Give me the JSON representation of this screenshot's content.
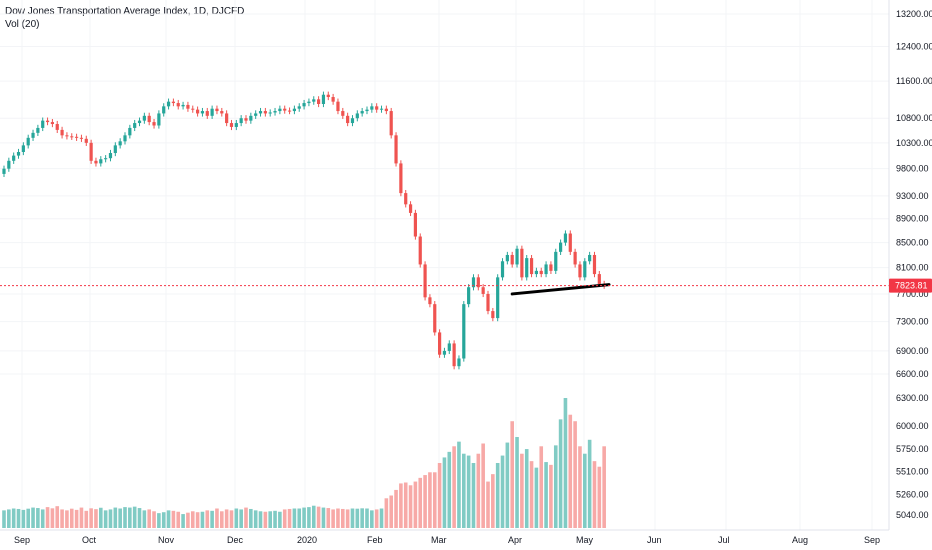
{
  "legend": {
    "title": "Dow Jones Transportation Average Index, 1D, DJCFD",
    "vol_label": "Vol (20)"
  },
  "colors": {
    "up": "#26a69a",
    "down": "#ef5350",
    "vol_up": "#80cbc4",
    "vol_down": "#f7a9a7",
    "price_line": "#f23645",
    "trendline": "#000000"
  },
  "chart_data": {
    "type": "candlestick",
    "title": "Dow Jones Transportation Average Index, 1D, DJCFD",
    "price_axis_ticks": [
      13200,
      12400,
      11600,
      10800,
      10300,
      9800,
      9300,
      8900,
      8500,
      8100,
      7700,
      7300,
      6900,
      6600
    ],
    "volume_axis_ticks": [
      6300,
      6000,
      5750,
      5510,
      5260,
      5040
    ],
    "x_tick_labels": [
      "Sep",
      "Oct",
      "Nov",
      "Dec",
      "2020",
      "Feb",
      "Mar",
      "Apr",
      "May",
      "Jun",
      "Jul",
      "Aug",
      "Sep"
    ],
    "last_price": "7823.81",
    "closes": [
      9800,
      9950,
      10050,
      10120,
      10250,
      10400,
      10500,
      10600,
      10750,
      10720,
      10680,
      10560,
      10450,
      10430,
      10420,
      10400,
      10380,
      10300,
      9950,
      9900,
      9980,
      10000,
      10100,
      10250,
      10330,
      10450,
      10600,
      10700,
      10750,
      10850,
      10720,
      10650,
      10900,
      11050,
      11150,
      11120,
      11050,
      11080,
      11000,
      10980,
      10900,
      10950,
      10850,
      11000,
      10950,
      10900,
      10700,
      10620,
      10700,
      10800,
      10750,
      10850,
      10900,
      10950,
      10900,
      10920,
      10950,
      11000,
      10960,
      10950,
      11000,
      11050,
      11120,
      11150,
      11200,
      11100,
      11300,
      11250,
      11150,
      10950,
      10850,
      10700,
      10800,
      10900,
      10950,
      10980,
      11050,
      10980,
      11000,
      10950,
      10450,
      9900,
      9350,
      9150,
      9000,
      8600,
      8150,
      7650,
      7550,
      7150,
      6850,
      6900,
      7000,
      6700,
      6800,
      7550,
      7800,
      7950,
      7800,
      7700,
      7450,
      7350,
      7950,
      8200,
      8300,
      8150,
      8400,
      7950,
      8250,
      8000,
      8050,
      8000,
      8150,
      8050,
      8350,
      8500,
      8650,
      8350,
      8150,
      7950,
      8200,
      8300,
      8000,
      7850,
      7823.81
    ],
    "volumes": [
      5090,
      5100,
      5110,
      5105,
      5095,
      5108,
      5120,
      5115,
      5100,
      5125,
      5112,
      5135,
      5100,
      5090,
      5108,
      5095,
      5120,
      5085,
      5112,
      5103,
      5118,
      5090,
      5100,
      5120,
      5110,
      5125,
      5120,
      5130,
      5115,
      5090,
      5100,
      5080,
      5060,
      5070,
      5090,
      5085,
      5075,
      5050,
      5065,
      5080,
      5070,
      5075,
      5090,
      5085,
      5110,
      5080,
      5100,
      5090,
      5110,
      5100,
      5120,
      5105,
      5090,
      5080,
      5075,
      5080,
      5085,
      5075,
      5100,
      5105,
      5110,
      5110,
      5120,
      5125,
      5140,
      5130,
      5120,
      5115,
      5100,
      5110,
      5105,
      5100,
      5110,
      5108,
      5112,
      5110,
      5090,
      5100,
      5110,
      5220,
      5250,
      5310,
      5380,
      5390,
      5360,
      5400,
      5440,
      5470,
      5500,
      5500,
      5600,
      5660,
      5720,
      5780,
      5830,
      5700,
      5680,
      5600,
      5700,
      5810,
      5400,
      5480,
      5600,
      5680,
      5820,
      6050,
      5880,
      5700,
      5750,
      5620,
      5550,
      5780,
      5610,
      5580,
      5790,
      6070,
      6300,
      6120,
      6050,
      5780,
      5700,
      5850,
      5620,
      5560,
      5780
    ]
  }
}
